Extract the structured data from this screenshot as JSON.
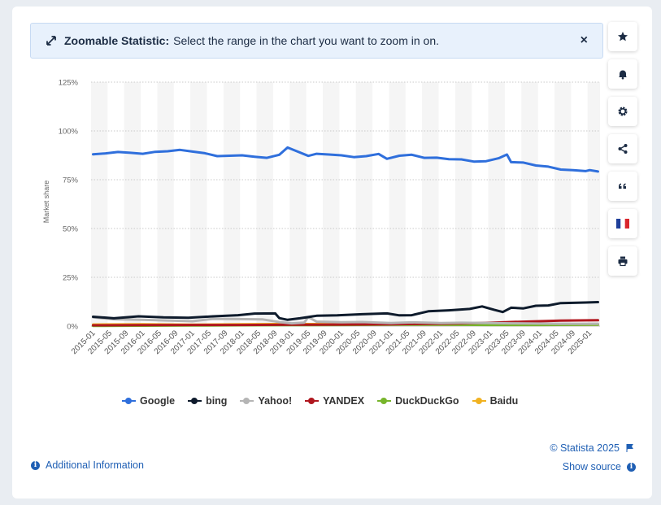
{
  "banner": {
    "title": "Zoomable Statistic:",
    "message": "Select the range in the chart you want to zoom in on.",
    "close": "×"
  },
  "toolbar": [
    "star-icon",
    "bell-icon",
    "gear-icon",
    "share-icon",
    "quote-icon",
    "french-flag-icon",
    "print-icon"
  ],
  "footer": {
    "additional_info": "Additional Information",
    "copyright": "© Statista 2025",
    "show_source": "Show source"
  },
  "colors": {
    "Google": "#2f6fdc",
    "bing": "#0e1b2c",
    "Yahoo!": "#b5b5b5",
    "YANDEX": "#b0171f",
    "DuckDuckGo": "#77b52b",
    "Baidu": "#f1b221",
    "accent": "#1f5fb4"
  },
  "chart_data": {
    "type": "line",
    "ylabel": "Market share",
    "ylim": [
      0,
      125
    ],
    "yticks": [
      0,
      25,
      50,
      75,
      100,
      125
    ],
    "ytick_labels": [
      "0%",
      "25%",
      "50%",
      "75%",
      "100%",
      "125%"
    ],
    "x_start": "2015-01",
    "x_end": "2025-03",
    "x_tick_labels": [
      "2015-01",
      "2015-05",
      "2015-09",
      "2016-01",
      "2016-05",
      "2016-09",
      "2017-01",
      "2017-05",
      "2017-09",
      "2018-01",
      "2018-05",
      "2018-09",
      "2019-01",
      "2019-05",
      "2019-09",
      "2020-01",
      "2020-05",
      "2020-09",
      "2021-01",
      "2021-05",
      "2021-09",
      "2022-01",
      "2022-05",
      "2022-09",
      "2023-01",
      "2023-05",
      "2023-09",
      "2024-01",
      "2024-05",
      "2024-09",
      "2025-01"
    ],
    "grid": true,
    "legend_position": "bottom",
    "series": [
      {
        "name": "Google",
        "points": [
          [
            "2015-01",
            88
          ],
          [
            "2015-04",
            88.5
          ],
          [
            "2015-07",
            89.2
          ],
          [
            "2015-10",
            88.8
          ],
          [
            "2016-01",
            88.3
          ],
          [
            "2016-04",
            89.3
          ],
          [
            "2016-07",
            89.6
          ],
          [
            "2016-10",
            90.3
          ],
          [
            "2017-01",
            89.4
          ],
          [
            "2017-04",
            88.6
          ],
          [
            "2017-07",
            87.1
          ],
          [
            "2017-10",
            87.3
          ],
          [
            "2018-01",
            87.5
          ],
          [
            "2018-04",
            86.8
          ],
          [
            "2018-07",
            86.2
          ],
          [
            "2018-10",
            87.8
          ],
          [
            "2018-12",
            91.5
          ],
          [
            "2019-02",
            89.8
          ],
          [
            "2019-05",
            87.2
          ],
          [
            "2019-07",
            88.3
          ],
          [
            "2019-10",
            87.9
          ],
          [
            "2020-01",
            87.5
          ],
          [
            "2020-04",
            86.6
          ],
          [
            "2020-07",
            87.1
          ],
          [
            "2020-10",
            88.2
          ],
          [
            "2020-12",
            85.7
          ],
          [
            "2021-03",
            87.3
          ],
          [
            "2021-06",
            87.8
          ],
          [
            "2021-09",
            86.2
          ],
          [
            "2021-12",
            86.3
          ],
          [
            "2022-03",
            85.5
          ],
          [
            "2022-06",
            85.4
          ],
          [
            "2022-09",
            84.3
          ],
          [
            "2022-12",
            84.5
          ],
          [
            "2023-03",
            86.0
          ],
          [
            "2023-05",
            87.9
          ],
          [
            "2023-06",
            84.0
          ],
          [
            "2023-09",
            83.8
          ],
          [
            "2023-12",
            82.3
          ],
          [
            "2024-03",
            81.7
          ],
          [
            "2024-06",
            80.2
          ],
          [
            "2024-09",
            79.9
          ],
          [
            "2024-12",
            79.4
          ],
          [
            "2025-01",
            79.9
          ],
          [
            "2025-03",
            79.2
          ]
        ]
      },
      {
        "name": "bing",
        "points": [
          [
            "2015-01",
            4.8
          ],
          [
            "2015-06",
            4.0
          ],
          [
            "2015-12",
            5.0
          ],
          [
            "2016-06",
            4.5
          ],
          [
            "2016-12",
            4.3
          ],
          [
            "2017-06",
            5.0
          ],
          [
            "2017-12",
            5.6
          ],
          [
            "2018-04",
            6.4
          ],
          [
            "2018-09",
            6.5
          ],
          [
            "2018-10",
            4.1
          ],
          [
            "2018-12",
            3.2
          ],
          [
            "2019-03",
            4.0
          ],
          [
            "2019-07",
            5.3
          ],
          [
            "2019-12",
            5.5
          ],
          [
            "2020-06",
            6.1
          ],
          [
            "2020-12",
            6.5
          ],
          [
            "2021-03",
            5.5
          ],
          [
            "2021-06",
            5.6
          ],
          [
            "2021-10",
            7.6
          ],
          [
            "2022-03",
            8.1
          ],
          [
            "2022-08",
            8.8
          ],
          [
            "2022-11",
            10.1
          ],
          [
            "2023-02",
            8.3
          ],
          [
            "2023-04",
            7.2
          ],
          [
            "2023-06",
            9.4
          ],
          [
            "2023-09",
            9.1
          ],
          [
            "2023-12",
            10.4
          ],
          [
            "2024-03",
            10.6
          ],
          [
            "2024-06",
            11.8
          ],
          [
            "2024-09",
            11.9
          ],
          [
            "2024-12",
            12.1
          ],
          [
            "2025-03",
            12.3
          ]
        ]
      },
      {
        "name": "Yahoo!",
        "points": [
          [
            "2015-01",
            4.5
          ],
          [
            "2015-06",
            3.5
          ],
          [
            "2016-01",
            3.2
          ],
          [
            "2016-06",
            2.9
          ],
          [
            "2017-01",
            2.5
          ],
          [
            "2017-06",
            3.7
          ],
          [
            "2017-12",
            3.6
          ],
          [
            "2018-06",
            3.4
          ],
          [
            "2018-10",
            2.1
          ],
          [
            "2019-01",
            1.4
          ],
          [
            "2019-04",
            1.8
          ],
          [
            "2019-05",
            4.6
          ],
          [
            "2019-07",
            2.3
          ],
          [
            "2020-01",
            2.0
          ],
          [
            "2020-06",
            2.1
          ],
          [
            "2021-01",
            1.6
          ],
          [
            "2021-06",
            1.9
          ],
          [
            "2022-01",
            1.6
          ],
          [
            "2022-06",
            1.7
          ],
          [
            "2023-01",
            1.6
          ],
          [
            "2023-06",
            1.4
          ],
          [
            "2024-01",
            1.3
          ],
          [
            "2024-06",
            1.2
          ],
          [
            "2025-03",
            1.2
          ]
        ]
      },
      {
        "name": "YANDEX",
        "points": [
          [
            "2015-01",
            0.4
          ],
          [
            "2016-01",
            0.5
          ],
          [
            "2017-01",
            0.6
          ],
          [
            "2018-01",
            0.6
          ],
          [
            "2019-01",
            0.7
          ],
          [
            "2020-01",
            0.8
          ],
          [
            "2021-01",
            0.9
          ],
          [
            "2021-06",
            1.1
          ],
          [
            "2022-01",
            1.2
          ],
          [
            "2022-06",
            1.4
          ],
          [
            "2023-01",
            1.7
          ],
          [
            "2023-06",
            2.1
          ],
          [
            "2024-01",
            2.5
          ],
          [
            "2024-06",
            2.8
          ],
          [
            "2025-03",
            3.0
          ]
        ]
      },
      {
        "name": "DuckDuckGo",
        "points": [
          [
            "2015-01",
            0.1
          ],
          [
            "2016-01",
            0.2
          ],
          [
            "2017-01",
            0.3
          ],
          [
            "2018-01",
            0.4
          ],
          [
            "2019-01",
            0.5
          ],
          [
            "2020-01",
            0.6
          ],
          [
            "2021-01",
            0.7
          ],
          [
            "2022-01",
            0.7
          ],
          [
            "2023-01",
            0.6
          ],
          [
            "2024-01",
            0.6
          ],
          [
            "2025-03",
            0.7
          ]
        ]
      },
      {
        "name": "Baidu",
        "points": [
          [
            "2015-01",
            0.8
          ],
          [
            "2016-01",
            0.9
          ],
          [
            "2017-01",
            0.7
          ],
          [
            "2018-01",
            0.9
          ],
          [
            "2019-01",
            1.1
          ],
          [
            "2020-01",
            1.0
          ],
          [
            "2021-01",
            0.9
          ],
          [
            "2022-01",
            0.8
          ],
          [
            "2023-01",
            0.8
          ],
          [
            "2024-01",
            0.7
          ],
          [
            "2025-03",
            0.8
          ]
        ]
      }
    ]
  }
}
